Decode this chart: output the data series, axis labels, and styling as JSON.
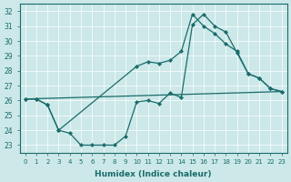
{
  "xlabel": "Humidex (Indice chaleur)",
  "xlim": [
    -0.5,
    23.5
  ],
  "ylim": [
    22.5,
    32.5
  ],
  "xticks": [
    0,
    1,
    2,
    3,
    4,
    5,
    6,
    7,
    8,
    9,
    10,
    11,
    12,
    13,
    14,
    15,
    16,
    17,
    18,
    19,
    20,
    21,
    22,
    23
  ],
  "yticks": [
    23,
    24,
    25,
    26,
    27,
    28,
    29,
    30,
    31,
    32
  ],
  "bg_color": "#cce8e8",
  "line_color": "#1a6b6b",
  "line1_x": [
    0,
    1,
    2,
    3,
    4,
    5,
    6,
    7,
    8,
    9,
    10,
    11,
    12,
    13,
    14,
    15,
    16,
    17,
    18,
    19,
    20,
    21,
    22,
    23
  ],
  "line1_y": [
    26.1,
    26.1,
    25.7,
    24.0,
    23.8,
    23.0,
    23.0,
    23.0,
    23.0,
    23.6,
    25.9,
    26.0,
    25.8,
    26.5,
    26.2,
    31.1,
    31.8,
    31.0,
    30.6,
    29.2,
    27.8,
    27.5,
    26.8,
    26.6
  ],
  "line2_x": [
    0,
    1,
    2,
    3,
    10,
    11,
    12,
    13,
    14,
    15,
    16,
    17,
    18,
    19,
    20,
    21,
    22,
    23
  ],
  "line2_y": [
    26.1,
    26.1,
    25.7,
    24.0,
    28.3,
    28.6,
    28.5,
    28.7,
    29.3,
    31.8,
    31.0,
    30.5,
    29.8,
    29.3,
    27.8,
    27.5,
    26.8,
    26.6
  ],
  "line3_x": [
    0,
    23
  ],
  "line3_y": [
    26.1,
    26.6
  ]
}
